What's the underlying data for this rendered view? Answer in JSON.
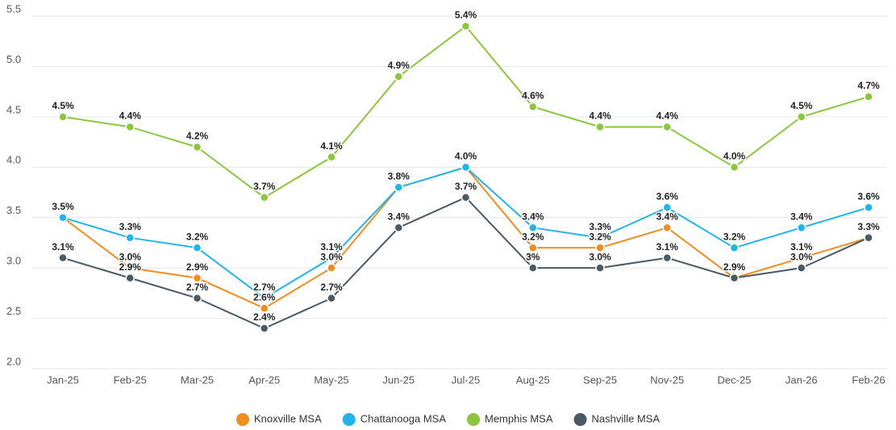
{
  "chart_data": {
    "type": "line",
    "categories": [
      "Jan-25",
      "Feb-25",
      "Mar-25",
      "Apr-25",
      "May-25",
      "Jun-25",
      "Jul-25",
      "Aug-25",
      "Sep-25",
      "Nov-25",
      "Dec-25",
      "Jan-26",
      "Feb-26"
    ],
    "series": [
      {
        "name": "Knoxville MSA",
        "color": "#f28c1e",
        "values": [
          3.5,
          3.0,
          2.9,
          2.6,
          3.0,
          3.8,
          4.0,
          3.2,
          3.2,
          3.4,
          2.9,
          3.1,
          3.3
        ],
        "value_labels": [
          "3.5%",
          "3.0%",
          "2.9%",
          "2.6%",
          "3.0%",
          "3.8%",
          "4.0%",
          "3.2%",
          "3.2%",
          "3.4%",
          "2.9%",
          "3.1%",
          "3.3%"
        ]
      },
      {
        "name": "Chattanooga MSA",
        "color": "#1eb4ec",
        "values": [
          3.5,
          3.3,
          3.2,
          2.7,
          3.1,
          3.8,
          4.0,
          3.4,
          3.3,
          3.6,
          3.2,
          3.4,
          3.6
        ],
        "value_labels": [
          "3.5%",
          "3.3%",
          "3.2%",
          "2.7%",
          "3.1%",
          "3.8%",
          "4.0%",
          "3.4%",
          "3.3%",
          "3.6%",
          "3.2%",
          "3.4%",
          "3.6%"
        ]
      },
      {
        "name": "Memphis MSA",
        "color": "#8cc63f",
        "values": [
          4.5,
          4.4,
          4.2,
          3.7,
          4.1,
          4.9,
          5.4,
          4.6,
          4.4,
          4.4,
          4.0,
          4.5,
          4.7
        ],
        "value_labels": [
          "4.5%",
          "4.4%",
          "4.2%",
          "3.7%",
          "4.1%",
          "4.9%",
          "5.4%",
          "4.6%",
          "4.4%",
          "4.4%",
          "4.0%",
          "4.5%",
          "4.7%"
        ]
      },
      {
        "name": "Nashville MSA",
        "color": "#4a5a64",
        "values": [
          3.1,
          2.9,
          2.7,
          2.4,
          2.7,
          3.4,
          3.7,
          3.0,
          3.0,
          3.1,
          2.9,
          3.0,
          3.3
        ],
        "value_labels": [
          "3.1%",
          "2.9%",
          "2.7%",
          "2.4%",
          "2.7%",
          "3.4%",
          "3.7%",
          "3%",
          "3.0%",
          "3.1%",
          "2.9%",
          "3.0%",
          "3.3%"
        ]
      }
    ],
    "ylim": [
      2.0,
      5.5
    ],
    "yticks": [
      {
        "value": 2,
        "label": "2.0"
      },
      2.5,
      {
        "value": 3,
        "label": "3.0"
      },
      3.5,
      {
        "value": 4,
        "label": "4.0"
      },
      4.5,
      {
        "value": 5,
        "label": "5.0"
      },
      5.5
    ],
    "grid": true,
    "legend": "bottom"
  }
}
